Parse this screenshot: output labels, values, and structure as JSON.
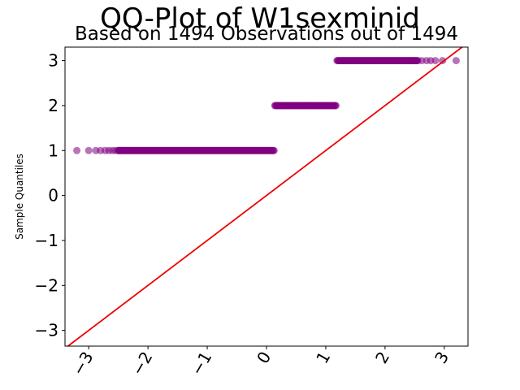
{
  "chart_data": {
    "type": "scatter",
    "title": "QQ-Plot of W1sexminid",
    "subtitle": "Based on 1494 Observations out of 1494",
    "xlabel": "",
    "ylabel": "Sample Quantiles",
    "xlim": [
      -3.4,
      3.4
    ],
    "ylim": [
      -3.35,
      3.3
    ],
    "xticks": [
      -3,
      -2,
      -1,
      0,
      1,
      2,
      3
    ],
    "xtick_labels": [
      "−3",
      "−2",
      "−1",
      "0",
      "1",
      "2",
      "3"
    ],
    "yticks": [
      -3,
      -2,
      -1,
      0,
      1,
      2,
      3
    ],
    "ytick_labels": [
      "−3",
      "−2",
      "−1",
      "0",
      "1",
      "2",
      "3"
    ],
    "grid": false,
    "reference_line": {
      "slope": 1,
      "intercept": 0,
      "color": "#ee0000"
    },
    "point_color": "#800080",
    "groups": [
      {
        "y": 1,
        "x_min": -3.2,
        "x_max": 0.13,
        "sparse_x": [
          -3.2,
          -3.0,
          -2.88,
          -2.8,
          -2.72,
          -2.66,
          -2.6,
          -2.55,
          -2.5
        ]
      },
      {
        "y": 2,
        "x_min": 0.14,
        "x_max": 1.18,
        "sparse_x": []
      },
      {
        "y": 3,
        "x_min": 1.19,
        "x_max": 3.2,
        "sparse_x": [
          2.55,
          2.62,
          2.7,
          2.77,
          2.85,
          2.97,
          3.2
        ]
      }
    ]
  }
}
